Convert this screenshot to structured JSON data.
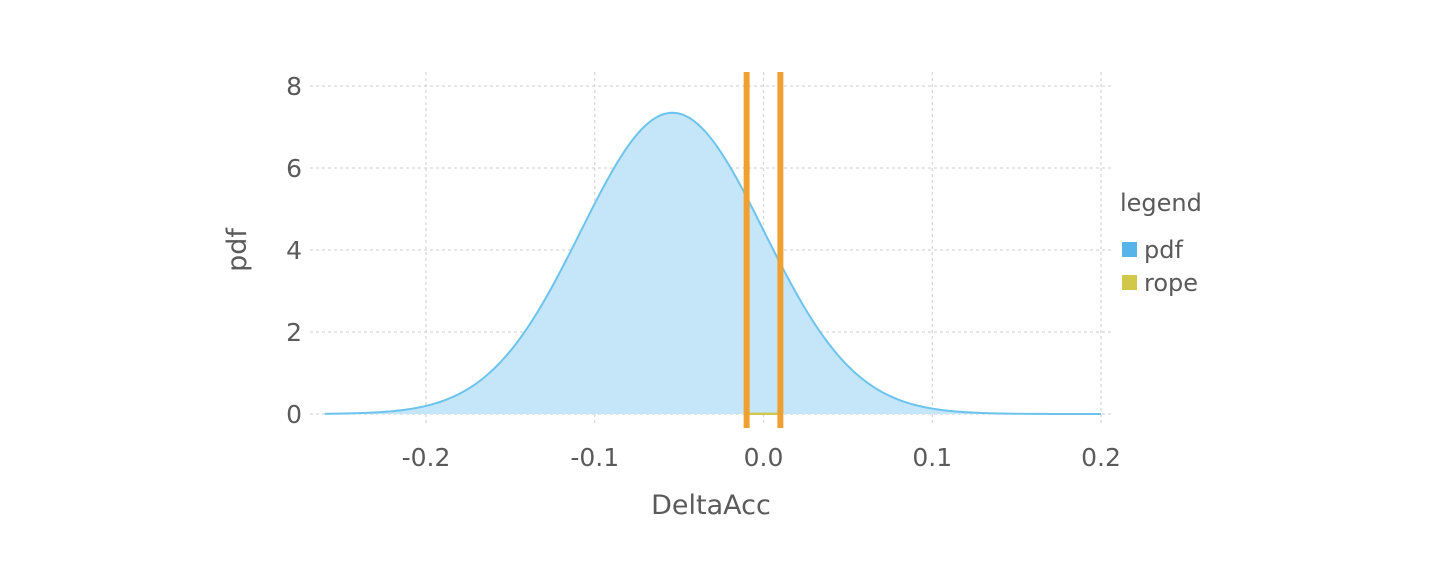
{
  "chart_data": {
    "type": "area",
    "xlabel": "DeltaAcc",
    "ylabel": "pdf",
    "xlim": [
      -0.26,
      0.2
    ],
    "ylim": [
      0,
      8
    ],
    "x_ticks": [
      -0.2,
      -0.1,
      0.0,
      0.1,
      0.2
    ],
    "x_tick_labels": [
      "-0.2",
      "-0.1",
      "0.0",
      "0.1",
      "0.2"
    ],
    "y_ticks": [
      0,
      2,
      4,
      6,
      8
    ],
    "y_tick_labels": [
      "0",
      "2",
      "4",
      "6",
      "8"
    ],
    "grid": true,
    "legend": {
      "title": "legend",
      "placement": "right",
      "entries": [
        {
          "name": "pdf",
          "color": "#56b4e9"
        },
        {
          "name": "rope",
          "color": "#d1c84a"
        }
      ]
    },
    "series": [
      {
        "name": "pdf",
        "kind": "filled-curve",
        "distribution": "normal",
        "mean": -0.054,
        "sd": 0.0543,
        "x_range": [
          -0.26,
          0.2
        ],
        "line_color": "#6cc4ee",
        "fill_color": "#c5e5f9"
      },
      {
        "name": "rope",
        "kind": "filled-curve",
        "x_range": [
          -0.01,
          0.01
        ],
        "y_values": [
          0.01,
          0.01
        ],
        "color": "#d1c84a"
      }
    ],
    "vlines": [
      {
        "x": -0.01,
        "color": "#f0a030"
      },
      {
        "x": 0.01,
        "color": "#f0a030"
      }
    ]
  }
}
